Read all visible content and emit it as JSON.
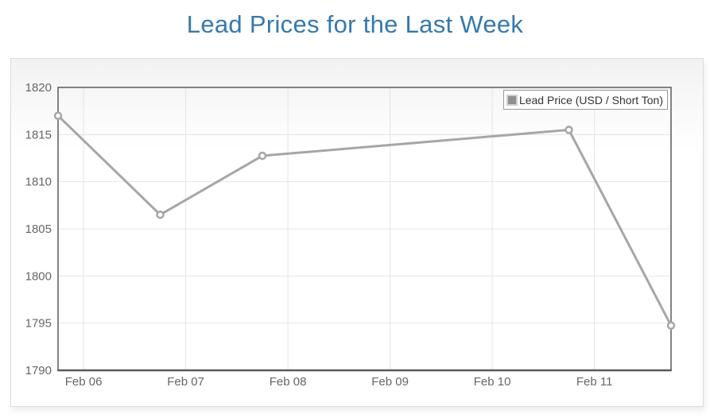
{
  "colors": {
    "title": "#3679ad",
    "line": "#a6a6a6",
    "marker_fill": "#ffffff",
    "axis": "#5a5a5a",
    "grid": "#e4e4e4",
    "tick_label": "#666666",
    "legend_border": "#9a9a9a",
    "legend_text": "#333333",
    "legend_marker": "#909090",
    "card_border": "#dcdcdc"
  },
  "chart_data": {
    "type": "line",
    "title": "Lead Prices for the Last Week",
    "legend": {
      "label": "Lead Price (USD / Short Ton)",
      "position": "top-right"
    },
    "grid": true,
    "x_axis": {
      "min": 0,
      "max": 6,
      "unit": "days from first point (Feb 05)",
      "ticks": [
        {
          "t": 0.25,
          "label": "Feb 06"
        },
        {
          "t": 1.25,
          "label": "Feb 07"
        },
        {
          "t": 2.25,
          "label": "Feb 08"
        },
        {
          "t": 3.25,
          "label": "Feb 09"
        },
        {
          "t": 4.25,
          "label": "Feb 10"
        },
        {
          "t": 5.25,
          "label": "Feb 11"
        }
      ]
    },
    "y_axis": {
      "min": 1790,
      "max": 1820,
      "ticks": [
        1820,
        1815,
        1810,
        1805,
        1800,
        1795,
        1790
      ]
    },
    "series": [
      {
        "name": "Lead Price (USD / Short Ton)",
        "points": [
          {
            "date": "Feb 05",
            "t": 0,
            "value": 1817.0
          },
          {
            "date": "Feb 06",
            "t": 1,
            "value": 1806.5
          },
          {
            "date": "Feb 07",
            "t": 2,
            "value": 1812.75
          },
          {
            "date": "Feb 10",
            "t": 5,
            "value": 1815.5
          },
          {
            "date": "Feb 11",
            "t": 6,
            "value": 1794.75
          }
        ]
      }
    ]
  }
}
